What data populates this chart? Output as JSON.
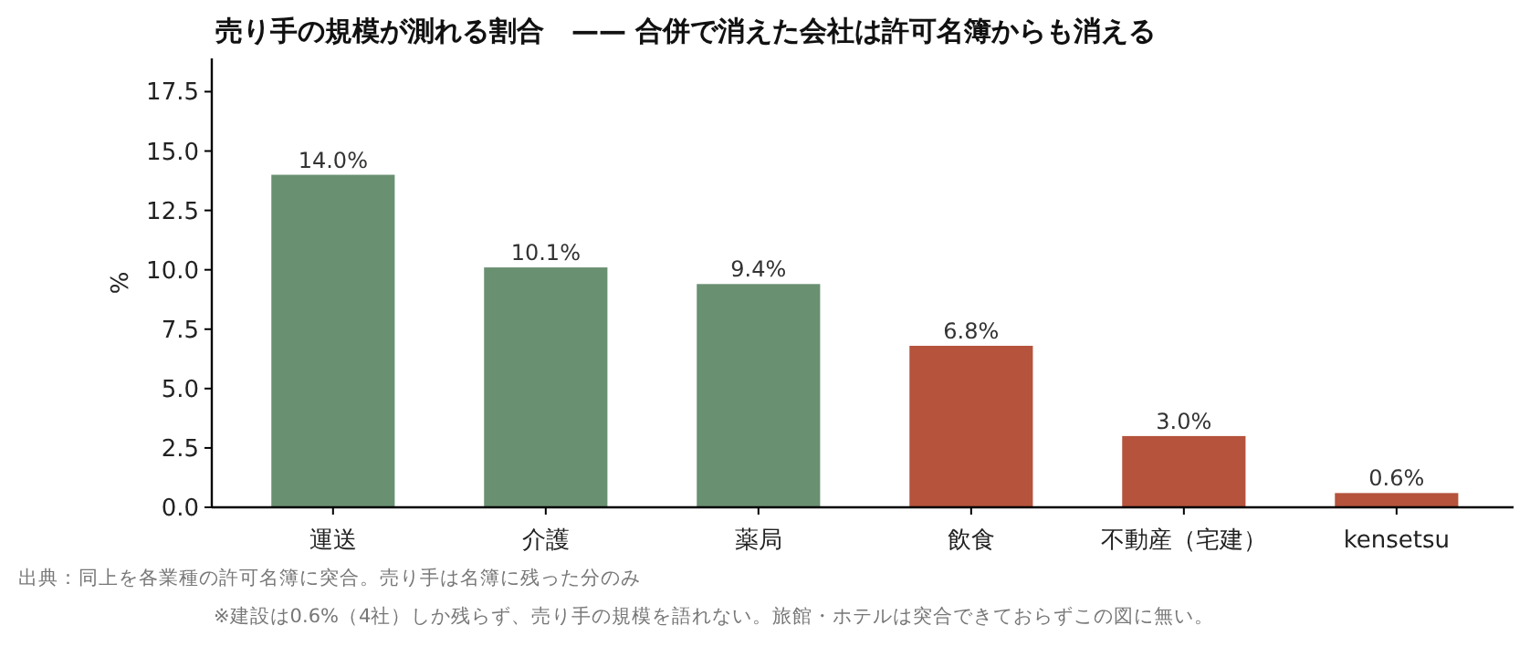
{
  "chart_data": {
    "type": "bar",
    "title": "売り手の規模が測れる割合　—— 合併で消えた会社は許可名簿からも消える",
    "ylabel": "%",
    "categories": [
      "運送",
      "介護",
      "薬局",
      "飲食",
      "不動産（宅建）",
      "kensetsu"
    ],
    "values": [
      14.0,
      10.1,
      9.4,
      6.8,
      3.0,
      0.6
    ],
    "colors": [
      "#6a9072",
      "#6a9072",
      "#6a9072",
      "#b5533c",
      "#b5533c",
      "#b5533c"
    ],
    "value_labels": [
      "14.0%",
      "10.1%",
      "9.4%",
      "6.8%",
      "3.0%",
      "0.6%"
    ],
    "ylim": [
      0,
      18.9
    ],
    "yticks": [
      {
        "value": 0,
        "label": "0.0"
      },
      {
        "value": 2.5,
        "label": "2.5"
      },
      {
        "value": 5,
        "label": "5.0"
      },
      {
        "value": 7.5,
        "label": "7.5"
      },
      {
        "value": 10,
        "label": "10.0"
      },
      {
        "value": 12.5,
        "label": "12.5"
      },
      {
        "value": 15,
        "label": "15.0"
      },
      {
        "value": 17.5,
        "label": "17.5"
      }
    ],
    "grid": false,
    "annotations": [
      "出典：同上を各業種の許可名簿に突合。売り手は名簿に残った分のみ",
      "※建設は0.6%（4社）しか残らず、売り手の規模を語れない。旅館・ホテルは突合できておらずこの図に無い。"
    ]
  }
}
